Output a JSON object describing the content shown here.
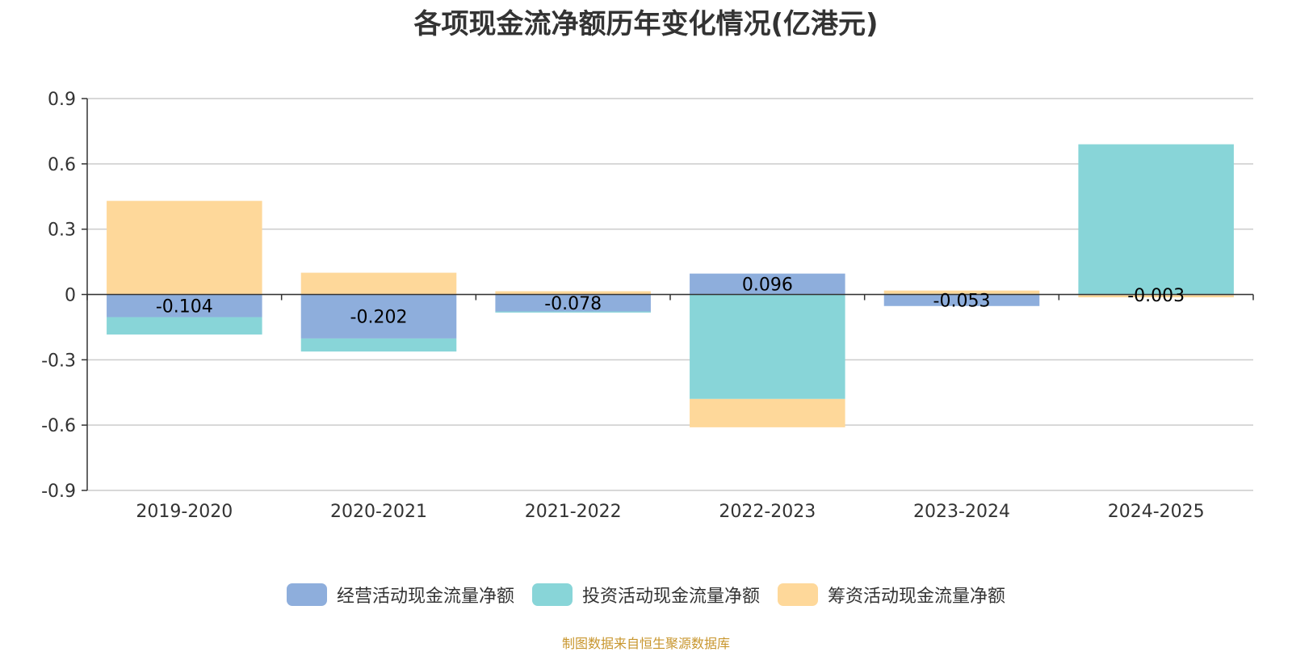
{
  "chart_data": {
    "type": "bar",
    "stacked": true,
    "title": "各项现金流净额历年变化情况(亿港元)",
    "categories": [
      "2019-2020",
      "2020-2021",
      "2021-2022",
      "2022-2023",
      "2023-2024",
      "2024-2025"
    ],
    "series": [
      {
        "name": "经营活动现金流量净额",
        "color": "#8eaedc",
        "values": [
          -0.104,
          -0.202,
          -0.078,
          0.096,
          -0.053,
          -0.003
        ],
        "value_labels": [
          "-0.104",
          "-0.202",
          "-0.078",
          "0.096",
          "-0.053",
          "-0.003"
        ]
      },
      {
        "name": "投资活动现金流量净额",
        "color": "#88d5d8",
        "values": [
          -0.08,
          -0.06,
          -0.005,
          -0.48,
          0.003,
          0.69
        ]
      },
      {
        "name": "筹资活动现金流量净额",
        "color": "#fed89a",
        "values": [
          0.43,
          0.1,
          0.015,
          -0.13,
          0.015,
          -0.01
        ]
      }
    ],
    "ylim": [
      -0.9,
      0.9
    ],
    "yticks": [
      "0.9",
      "0.6",
      "0.3",
      "0",
      "-0.3",
      "-0.6",
      "-0.9"
    ],
    "grid": true,
    "legend_position": "bottom"
  },
  "source_note": "制图数据来自恒生聚源数据库"
}
